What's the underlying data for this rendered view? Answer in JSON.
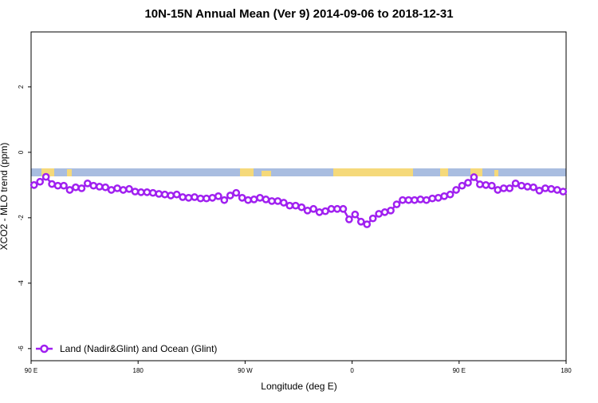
{
  "chart_data": {
    "type": "line",
    "title": "10N-15N Annual Mean (Ver 9)   2014-09-06 to 2018-12-31",
    "x_label": "Longitude (deg E)",
    "y_label": "XCO2 - MLO trend (ppm)",
    "x": [
      92.5,
      97.5,
      102.5,
      107.5,
      112.5,
      117.5,
      122.5,
      127.5,
      132.5,
      137.5,
      142.5,
      147.5,
      152.5,
      157.5,
      162.5,
      167.5,
      172.5,
      177.5,
      182.5,
      187.5,
      192.5,
      197.5,
      202.5,
      207.5,
      212.5,
      217.5,
      222.5,
      227.5,
      232.5,
      237.5,
      242.5,
      247.5,
      252.5,
      257.5,
      262.5,
      267.5,
      272.5,
      277.5,
      282.5,
      287.5,
      292.5,
      297.5,
      302.5,
      307.5,
      312.5,
      317.5,
      322.5,
      327.5,
      332.5,
      337.5,
      342.5,
      347.5,
      352.5,
      357.5,
      362.5,
      367.5,
      372.5,
      377.5,
      382.5,
      387.5,
      392.5,
      397.5,
      402.5,
      407.5,
      412.5,
      417.5,
      422.5,
      427.5,
      432.5,
      437.5,
      442.5,
      447.5,
      452.5,
      457.5,
      462.5,
      467.5,
      472.5,
      477.5,
      482.5,
      487.5,
      492.5,
      497.5,
      502.5,
      507.5,
      512.5,
      517.5,
      522.5,
      527.5,
      532.5,
      537.5
    ],
    "series": [
      {
        "name": "Land (Nadir&Glint) and Ocean (Glint)",
        "color": "#a020f0",
        "values": [
          -1.0,
          -0.9,
          -0.75,
          -0.97,
          -1.02,
          -1.02,
          -1.15,
          -1.07,
          -1.1,
          -0.95,
          -1.02,
          -1.05,
          -1.07,
          -1.15,
          -1.1,
          -1.15,
          -1.12,
          -1.2,
          -1.22,
          -1.22,
          -1.24,
          -1.27,
          -1.29,
          -1.32,
          -1.29,
          -1.37,
          -1.39,
          -1.37,
          -1.41,
          -1.41,
          -1.39,
          -1.34,
          -1.46,
          -1.32,
          -1.24,
          -1.39,
          -1.46,
          -1.44,
          -1.39,
          -1.44,
          -1.49,
          -1.49,
          -1.54,
          -1.63,
          -1.63,
          -1.68,
          -1.78,
          -1.73,
          -1.83,
          -1.8,
          -1.73,
          -1.73,
          -1.73,
          -2.05,
          -1.9,
          -2.12,
          -2.2,
          -2.02,
          -1.88,
          -1.83,
          -1.78,
          -1.59,
          -1.46,
          -1.46,
          -1.46,
          -1.44,
          -1.46,
          -1.41,
          -1.39,
          -1.34,
          -1.29,
          -1.15,
          -1.02,
          -0.93,
          -0.76,
          -0.98,
          -1.0,
          -1.02,
          -1.15,
          -1.1,
          -1.1,
          -0.95,
          -1.02,
          -1.05,
          -1.07,
          -1.17,
          -1.1,
          -1.12,
          -1.15,
          -1.2
        ]
      }
    ],
    "xlim": [
      90,
      540
    ],
    "xticks": [
      {
        "value": 90,
        "label": "90 E"
      },
      180,
      {
        "value": 270,
        "label": "90 W"
      },
      {
        "value": 360,
        "label": "0"
      },
      {
        "value": 450,
        "label": "90 E"
      },
      {
        "value": 540,
        "label": "180"
      }
    ],
    "ylim": [
      -6.37,
      3.68
    ],
    "yticks": [
      2,
      0,
      -2,
      -4,
      -6
    ]
  }
}
